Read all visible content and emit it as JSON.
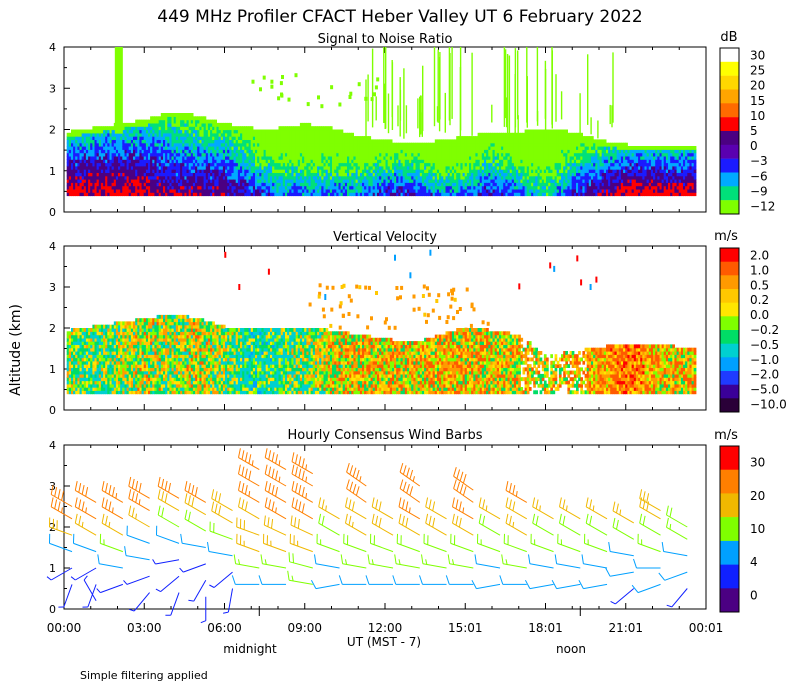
{
  "title": "449 MHz Profiler CFACT Heber Valley UT  6 February 2022",
  "y_axis_label": "Altitude (km)",
  "x_axis_label": "UT  (MST - 7)",
  "x_ticks": [
    "00:00",
    "03:00",
    "06:00",
    "09:00",
    "12:00",
    "15:01",
    "18:01",
    "21:01",
    "00:01"
  ],
  "local_time_labels": [
    "midnight",
    "noon"
  ],
  "footnote": "Simple filtering applied",
  "panels": [
    {
      "title": "Signal to Noise Ratio",
      "units": "dB",
      "y_ticks": [
        "0",
        "1",
        "2",
        "3",
        "4"
      ],
      "scale_labels": [
        "30",
        "25",
        "20",
        "15",
        "10",
        "5",
        "0",
        "−3",
        "−6",
        "−9",
        "−12"
      ],
      "scale_colors": [
        "#ffffff",
        "#ffff00",
        "#ffd700",
        "#ffa500",
        "#ff6a00",
        "#ff0000",
        "#4b0082",
        "#5a00b0",
        "#1b1bff",
        "#00aaff",
        "#00e07a",
        "#7fff00"
      ]
    },
    {
      "title": "Vertical Velocity",
      "units": "m/s",
      "y_ticks": [
        "0",
        "1",
        "2",
        "3",
        "4"
      ],
      "scale_labels": [
        "2.0",
        "1.0",
        "0.5",
        "0.2",
        "0.0",
        "−0.2",
        "−0.5",
        "−1.0",
        "−2.0",
        "−5.0",
        "−10.0"
      ],
      "scale_colors": [
        "#ff0000",
        "#ff5a00",
        "#ff9a00",
        "#ffc800",
        "#ffe600",
        "#7fff00",
        "#00dd66",
        "#00d0d0",
        "#00a0ff",
        "#1f3bff",
        "#3a0099",
        "#2a0038"
      ]
    },
    {
      "title": "Hourly Consensus Wind Barbs",
      "units": "m/s",
      "y_ticks": [
        "0",
        "1",
        "2",
        "3",
        "4"
      ],
      "scale_labels": [
        "30",
        "20",
        "10",
        "4",
        "0"
      ],
      "scale_colors": [
        "#ff0000",
        "#ff7f00",
        "#f0b800",
        "#7fff00",
        "#00a0ff",
        "#1020ff",
        "#4b0082"
      ]
    }
  ],
  "chart_data": [
    {
      "type": "heatmap",
      "title": "Signal to Noise Ratio",
      "xlabel": "UT  (MST - 7)",
      "ylabel": "Altitude (km)",
      "xlim": [
        0,
        24
      ],
      "ylim": [
        0,
        4
      ],
      "colorbar_units": "dB",
      "colorbar_range": [
        -12,
        30
      ],
      "data_floor_km": 0.4,
      "echo_top_km": [
        1.9,
        2.0,
        2.1,
        2.2,
        2.4,
        2.3,
        2.1,
        2.0,
        2.0,
        2.1,
        2.0,
        1.8,
        1.7,
        1.6,
        1.7,
        1.8,
        1.9,
        1.9,
        2.0,
        1.9,
        1.7,
        1.6,
        1.6,
        1.6
      ],
      "dominant_snr_db_by_hour": [
        0,
        0,
        0,
        0,
        -3,
        -3,
        -3,
        -6,
        -9,
        -9,
        -9,
        -9,
        -6,
        -6,
        -9,
        -9,
        -6,
        -9,
        -12,
        -6,
        -3,
        0,
        0,
        0
      ]
    },
    {
      "type": "heatmap",
      "title": "Vertical Velocity",
      "xlabel": "UT  (MST - 7)",
      "ylabel": "Altitude (km)",
      "xlim": [
        0,
        24
      ],
      "ylim": [
        0,
        4
      ],
      "colorbar_units": "m/s",
      "colorbar_range": [
        -10.0,
        2.0
      ],
      "data_floor_km": 0.4,
      "echo_top_km": [
        1.9,
        2.0,
        2.1,
        2.2,
        2.3,
        2.2,
        2.0,
        2.0,
        2.0,
        2.0,
        1.9,
        1.8,
        1.7,
        1.6,
        1.8,
        2.0,
        1.9,
        1.8,
        1.3,
        1.4,
        1.5,
        1.6,
        1.6,
        1.5
      ],
      "mean_w_ms_by_hour": [
        -0.3,
        -0.5,
        -0.2,
        0.0,
        -0.2,
        0.1,
        -0.4,
        -0.8,
        -0.6,
        -0.3,
        0.1,
        0.2,
        0.3,
        0.2,
        0.4,
        0.3,
        0.2,
        0.2,
        0.1,
        0.3,
        0.6,
        1.0,
        0.5,
        0.3
      ]
    },
    {
      "type": "scatter",
      "title": "Hourly Consensus Wind Barbs",
      "xlabel": "UT  (MST - 7)",
      "ylabel": "Altitude (km)",
      "xlim": [
        0,
        24
      ],
      "ylim": [
        0,
        4
      ],
      "colorbar_units": "m/s",
      "series": [
        {
          "name": "00:00",
          "hour": 0.3,
          "levels_km": [
            0.6,
            1.0,
            1.4,
            1.8,
            2.2,
            2.5
          ],
          "speed_ms": [
            2,
            3,
            6,
            14,
            18,
            20
          ],
          "dir_deg": [
            200,
            240,
            290,
            290,
            300,
            300
          ]
        },
        {
          "name": "01:00",
          "hour": 1.2,
          "levels_km": [
            0.2,
            0.6,
            1.0,
            1.4,
            1.8,
            2.2,
            2.6
          ],
          "speed_ms": [
            2,
            2,
            3,
            6,
            12,
            18,
            20
          ],
          "dir_deg": [
            330,
            200,
            240,
            290,
            300,
            300,
            300
          ]
        },
        {
          "name": "02:00",
          "hour": 2.2,
          "levels_km": [
            0.6,
            1.0,
            1.4,
            1.8,
            2.2,
            2.6
          ],
          "speed_ms": [
            2,
            5,
            8,
            12,
            18,
            22
          ],
          "dir_deg": [
            250,
            280,
            290,
            300,
            300,
            300
          ]
        },
        {
          "name": "03:00",
          "hour": 3.2,
          "levels_km": [
            0.4,
            0.8,
            1.2,
            1.6,
            2.0,
            2.4,
            2.7
          ],
          "speed_ms": [
            2,
            3,
            4,
            6,
            12,
            18,
            20
          ],
          "dir_deg": [
            220,
            250,
            280,
            290,
            300,
            300,
            300
          ]
        },
        {
          "name": "04:00",
          "hour": 4.3,
          "levels_km": [
            0.4,
            0.8,
            1.2,
            1.6,
            2.0,
            2.4,
            2.7
          ],
          "speed_ms": [
            2,
            3,
            3,
            5,
            10,
            16,
            20
          ],
          "dir_deg": [
            200,
            230,
            260,
            290,
            300,
            300,
            300
          ]
        },
        {
          "name": "05:00",
          "hour": 5.3,
          "levels_km": [
            0.3,
            0.7,
            1.1,
            1.5,
            1.9,
            2.3,
            2.6
          ],
          "speed_ms": [
            2,
            3,
            3,
            4,
            10,
            16,
            20
          ],
          "dir_deg": [
            180,
            210,
            250,
            280,
            300,
            300,
            300
          ]
        },
        {
          "name": "06:00",
          "hour": 6.3,
          "levels_km": [
            0.5,
            0.9,
            1.3,
            1.7,
            2.1,
            2.4
          ],
          "speed_ms": [
            2,
            3,
            5,
            10,
            14,
            16
          ],
          "dir_deg": [
            190,
            230,
            280,
            290,
            300,
            300
          ]
        },
        {
          "name": "07:00",
          "hour": 7.3,
          "levels_km": [
            0.6,
            1.0,
            1.4,
            1.8,
            2.2,
            2.6,
            3.0,
            3.4
          ],
          "speed_ms": [
            6,
            8,
            12,
            14,
            16,
            18,
            20,
            22
          ],
          "dir_deg": [
            270,
            280,
            290,
            290,
            300,
            300,
            300,
            300
          ]
        },
        {
          "name": "08:00",
          "hour": 8.3,
          "levels_km": [
            0.6,
            1.0,
            1.4,
            1.8,
            2.2,
            2.6,
            3.0,
            3.4
          ],
          "speed_ms": [
            6,
            8,
            12,
            16,
            18,
            20,
            22,
            22
          ],
          "dir_deg": [
            270,
            280,
            290,
            295,
            300,
            300,
            300,
            300
          ]
        },
        {
          "name": "09:00",
          "hour": 9.3,
          "levels_km": [
            0.6,
            1.0,
            1.4,
            1.8,
            2.2,
            2.6,
            3.0,
            3.3
          ],
          "speed_ms": [
            8,
            10,
            12,
            16,
            20,
            22,
            22,
            22
          ],
          "dir_deg": [
            280,
            285,
            290,
            295,
            300,
            300,
            300,
            300
          ]
        },
        {
          "name": "10:00",
          "hour": 10.3,
          "levels_km": [
            0.6,
            1.0,
            1.4,
            1.8,
            2.2
          ],
          "speed_ms": [
            4,
            6,
            8,
            10,
            12
          ],
          "dir_deg": [
            260,
            280,
            290,
            300,
            300
          ]
        },
        {
          "name": "11:00",
          "hour": 11.3,
          "levels_km": [
            0.6,
            1.0,
            1.4,
            1.8,
            2.2,
            2.6,
            3.0
          ],
          "speed_ms": [
            6,
            8,
            10,
            12,
            16,
            20,
            22
          ],
          "dir_deg": [
            270,
            280,
            290,
            300,
            300,
            305,
            305
          ]
        },
        {
          "name": "12:00",
          "hour": 12.3,
          "levels_km": [
            0.6,
            1.0,
            1.4,
            1.8,
            2.2
          ],
          "speed_ms": [
            6,
            8,
            10,
            14,
            16
          ],
          "dir_deg": [
            270,
            280,
            290,
            300,
            300
          ]
        },
        {
          "name": "13:00",
          "hour": 13.3,
          "levels_km": [
            0.6,
            1.0,
            1.4,
            1.8,
            2.2,
            2.6,
            3.0
          ],
          "speed_ms": [
            6,
            8,
            10,
            14,
            18,
            20,
            22
          ],
          "dir_deg": [
            270,
            280,
            290,
            300,
            300,
            305,
            305
          ]
        },
        {
          "name": "14:00",
          "hour": 14.3,
          "levels_km": [
            0.6,
            1.0,
            1.4,
            1.8,
            2.2
          ],
          "speed_ms": [
            6,
            8,
            10,
            14,
            16
          ],
          "dir_deg": [
            270,
            280,
            290,
            300,
            300
          ]
        },
        {
          "name": "15:01",
          "hour": 15.3,
          "levels_km": [
            0.6,
            1.0,
            1.4,
            1.8,
            2.2,
            2.6,
            2.9
          ],
          "speed_ms": [
            6,
            8,
            10,
            14,
            18,
            20,
            20
          ],
          "dir_deg": [
            270,
            280,
            290,
            300,
            300,
            305,
            305
          ]
        },
        {
          "name": "16:01",
          "hour": 16.3,
          "levels_km": [
            0.6,
            1.0,
            1.4,
            1.8,
            2.2
          ],
          "speed_ms": [
            4,
            6,
            8,
            10,
            12
          ],
          "dir_deg": [
            260,
            280,
            290,
            300,
            300
          ]
        },
        {
          "name": "17:01",
          "hour": 17.3,
          "levels_km": [
            0.6,
            1.0,
            1.4,
            1.8,
            2.2,
            2.6
          ],
          "speed_ms": [
            6,
            8,
            10,
            12,
            16,
            18
          ],
          "dir_deg": [
            270,
            280,
            290,
            300,
            300,
            300
          ]
        },
        {
          "name": "18:01",
          "hour": 18.3,
          "levels_km": [
            0.6,
            1.0,
            1.4,
            1.8,
            2.2
          ],
          "speed_ms": [
            4,
            6,
            8,
            10,
            12
          ],
          "dir_deg": [
            260,
            280,
            290,
            300,
            300
          ]
        },
        {
          "name": "19:01",
          "hour": 19.3,
          "levels_km": [
            0.6,
            1.0,
            1.4,
            1.8,
            2.2
          ],
          "speed_ms": [
            4,
            6,
            8,
            10,
            12
          ],
          "dir_deg": [
            260,
            280,
            290,
            300,
            300
          ]
        },
        {
          "name": "20:01",
          "hour": 20.3,
          "levels_km": [
            0.6,
            1.0,
            1.4,
            1.8,
            2.2
          ],
          "speed_ms": [
            4,
            6,
            8,
            10,
            12
          ],
          "dir_deg": [
            260,
            280,
            290,
            300,
            300
          ]
        },
        {
          "name": "21:01",
          "hour": 21.3,
          "levels_km": [
            0.5,
            0.9,
            1.3,
            1.7,
            2.1
          ],
          "speed_ms": [
            2,
            4,
            6,
            10,
            12
          ],
          "dir_deg": [
            230,
            260,
            280,
            300,
            300
          ]
        },
        {
          "name": "22:01",
          "hour": 22.3,
          "levels_km": [
            0.6,
            1.0,
            1.4,
            1.8,
            2.2,
            2.4
          ],
          "speed_ms": [
            4,
            6,
            8,
            10,
            14,
            16
          ],
          "dir_deg": [
            250,
            270,
            290,
            300,
            300,
            300
          ]
        },
        {
          "name": "23:01",
          "hour": 23.3,
          "levels_km": [
            0.5,
            0.9,
            1.3,
            1.7,
            2.0
          ],
          "speed_ms": [
            2,
            4,
            6,
            8,
            10
          ],
          "dir_deg": [
            220,
            250,
            280,
            300,
            300
          ]
        }
      ]
    }
  ]
}
